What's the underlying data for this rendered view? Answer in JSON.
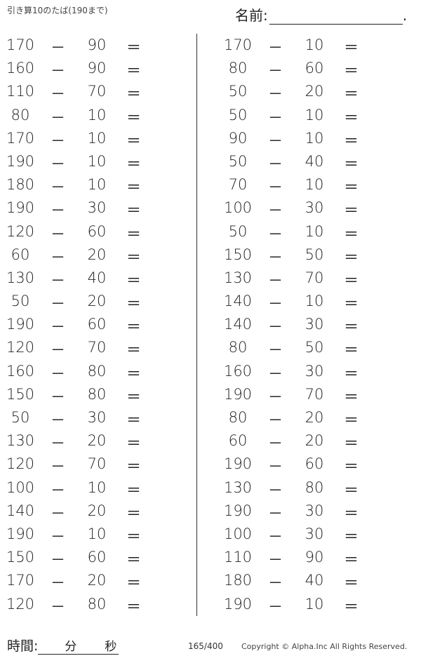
{
  "header": {
    "title": "引き算10のたば(190まで)",
    "name_label": "名前:",
    "name_end": "."
  },
  "operator": "－",
  "equals": "＝",
  "left_problems": [
    [
      "170",
      "90"
    ],
    [
      "160",
      "90"
    ],
    [
      "110",
      "70"
    ],
    [
      "80",
      "10"
    ],
    [
      "170",
      "10"
    ],
    [
      "190",
      "10"
    ],
    [
      "180",
      "10"
    ],
    [
      "190",
      "30"
    ],
    [
      "120",
      "60"
    ],
    [
      "60",
      "20"
    ],
    [
      "130",
      "40"
    ],
    [
      "50",
      "20"
    ],
    [
      "190",
      "60"
    ],
    [
      "120",
      "70"
    ],
    [
      "160",
      "80"
    ],
    [
      "150",
      "80"
    ],
    [
      "50",
      "30"
    ],
    [
      "130",
      "20"
    ],
    [
      "120",
      "70"
    ],
    [
      "100",
      "10"
    ],
    [
      "140",
      "20"
    ],
    [
      "190",
      "10"
    ],
    [
      "150",
      "60"
    ],
    [
      "170",
      "20"
    ],
    [
      "120",
      "80"
    ]
  ],
  "right_problems": [
    [
      "170",
      "10"
    ],
    [
      "80",
      "60"
    ],
    [
      "50",
      "20"
    ],
    [
      "50",
      "10"
    ],
    [
      "90",
      "10"
    ],
    [
      "50",
      "40"
    ],
    [
      "70",
      "10"
    ],
    [
      "100",
      "30"
    ],
    [
      "50",
      "10"
    ],
    [
      "150",
      "50"
    ],
    [
      "130",
      "70"
    ],
    [
      "140",
      "10"
    ],
    [
      "140",
      "30"
    ],
    [
      "80",
      "50"
    ],
    [
      "160",
      "30"
    ],
    [
      "190",
      "70"
    ],
    [
      "80",
      "20"
    ],
    [
      "60",
      "20"
    ],
    [
      "190",
      "60"
    ],
    [
      "130",
      "80"
    ],
    [
      "190",
      "30"
    ],
    [
      "100",
      "30"
    ],
    [
      "110",
      "90"
    ],
    [
      "180",
      "40"
    ],
    [
      "190",
      "10"
    ]
  ],
  "footer": {
    "time_label": "時間:",
    "minutes": "分",
    "seconds": "秒",
    "page": "165/400",
    "copyright": "Copyright ©  Alpha.Inc All Rights Reserved."
  }
}
